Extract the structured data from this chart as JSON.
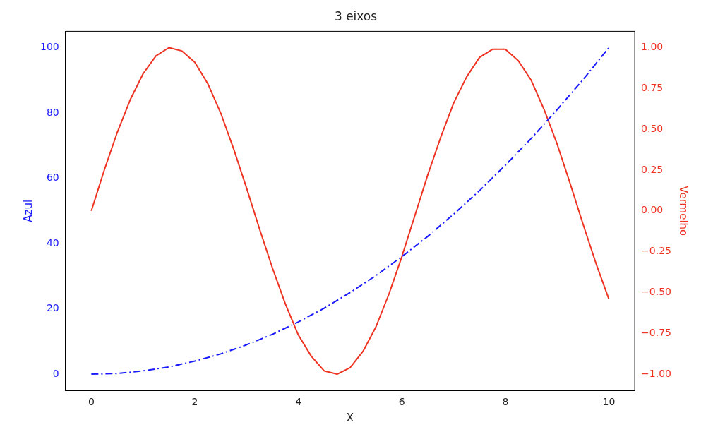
{
  "chart_data": {
    "type": "line",
    "title": "3 eixos",
    "xlabel": "X",
    "ylabel": "Azul",
    "y2label": "Vermelho",
    "xlim": [
      -0.5,
      10.5
    ],
    "xticks": [
      0,
      2,
      4,
      6,
      8,
      10
    ],
    "ylim": [
      -5,
      105
    ],
    "yticks": [
      0,
      20,
      40,
      60,
      80,
      100
    ],
    "y2lim": [
      -1.1,
      1.1
    ],
    "y2ticks": [
      {
        "value": -1,
        "label": "−1.00"
      },
      {
        "value": -0.75,
        "label": "−0.75"
      },
      {
        "value": -0.5,
        "label": "−0.50"
      },
      {
        "value": -0.25,
        "label": "−0.25"
      },
      {
        "value": 0,
        "label": "0.00"
      },
      {
        "value": 0.25,
        "label": "0.25"
      },
      {
        "value": 0.5,
        "label": "0.50"
      },
      {
        "value": 0.75,
        "label": "0.75"
      },
      {
        "value": 1,
        "label": "1.00"
      }
    ],
    "grid": false,
    "legend": false,
    "series": [
      {
        "color": "#1a1aff",
        "line_style": "dashed",
        "x": [
          0,
          0.5,
          1,
          1.5,
          2,
          2.5,
          3,
          3.5,
          4,
          4.5,
          5,
          5.5,
          6,
          6.5,
          7,
          7.5,
          8,
          8.5,
          9,
          9.5,
          10
        ],
        "values": [
          0,
          0.2,
          1,
          2.2,
          4,
          6.2,
          9,
          12.2,
          16,
          20.2,
          25,
          30.2,
          36,
          42.2,
          49,
          56.2,
          64,
          72.2,
          81,
          90.2,
          100
        ]
      },
      {
        "color": "#ee3322",
        "line_style": "solid",
        "axis": "y2",
        "x": [
          0,
          0.25,
          0.5,
          0.75,
          1,
          1.25,
          1.5,
          1.75,
          2,
          2.25,
          2.5,
          2.75,
          3,
          3.25,
          3.5,
          3.75,
          4,
          4.25,
          4.5,
          4.75,
          5,
          5.25,
          5.5,
          5.75,
          6,
          6.25,
          6.5,
          6.75,
          7,
          7.25,
          7.5,
          7.75,
          8,
          8.25,
          8.5,
          8.75,
          9,
          9.25,
          9.5,
          9.75,
          10
        ],
        "values": [
          0,
          0.25,
          0.48,
          0.68,
          0.84,
          0.95,
          1,
          0.98,
          0.91,
          0.78,
          0.6,
          0.38,
          0.14,
          -0.11,
          -0.35,
          -0.57,
          -0.76,
          -0.89,
          -0.98,
          -1,
          -0.96,
          -0.86,
          -0.71,
          -0.51,
          -0.28,
          -0.03,
          0.22,
          0.45,
          0.66,
          0.82,
          0.94,
          0.99,
          0.99,
          0.92,
          0.8,
          0.62,
          0.41,
          0.17,
          -0.08,
          -0.32,
          -0.54
        ]
      }
    ]
  }
}
